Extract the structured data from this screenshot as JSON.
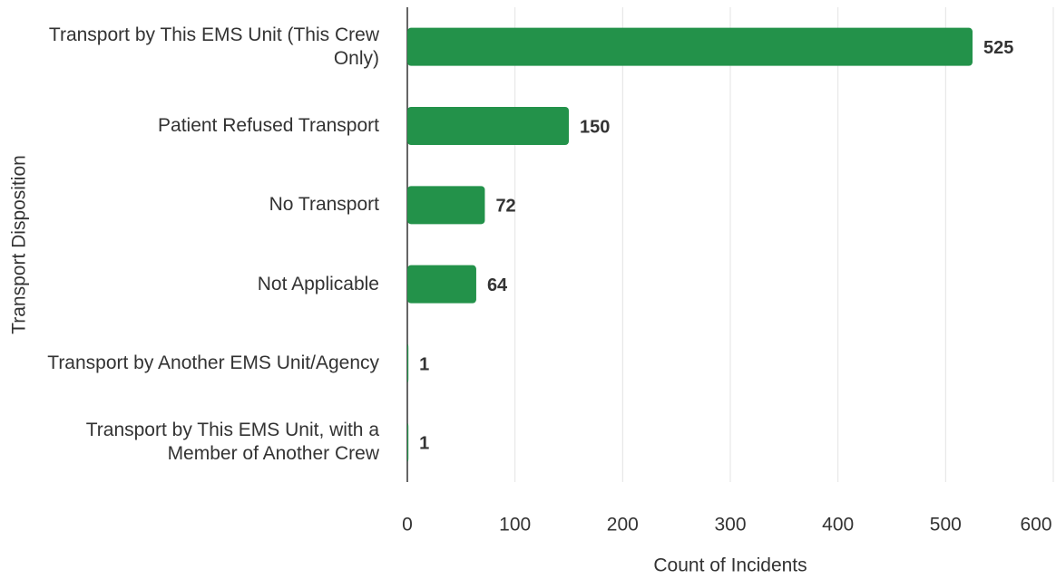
{
  "chart_data": {
    "type": "bar",
    "orientation": "horizontal",
    "x_label": "Count of Incidents",
    "y_label": "Transport Disposition",
    "categories": [
      "Transport by This EMS Unit (This Crew Only)",
      "Patient Refused Transport",
      "No Transport",
      "Not Applicable",
      "Transport by Another EMS Unit/Agency",
      "Transport by This EMS Unit, with a Member of Another Crew"
    ],
    "values": [
      525,
      150,
      72,
      64,
      1,
      1
    ],
    "color": "#23924a",
    "xlim": [
      0,
      600
    ],
    "xticks": [
      0,
      100,
      200,
      300,
      400,
      500,
      600
    ],
    "grid": true
  }
}
